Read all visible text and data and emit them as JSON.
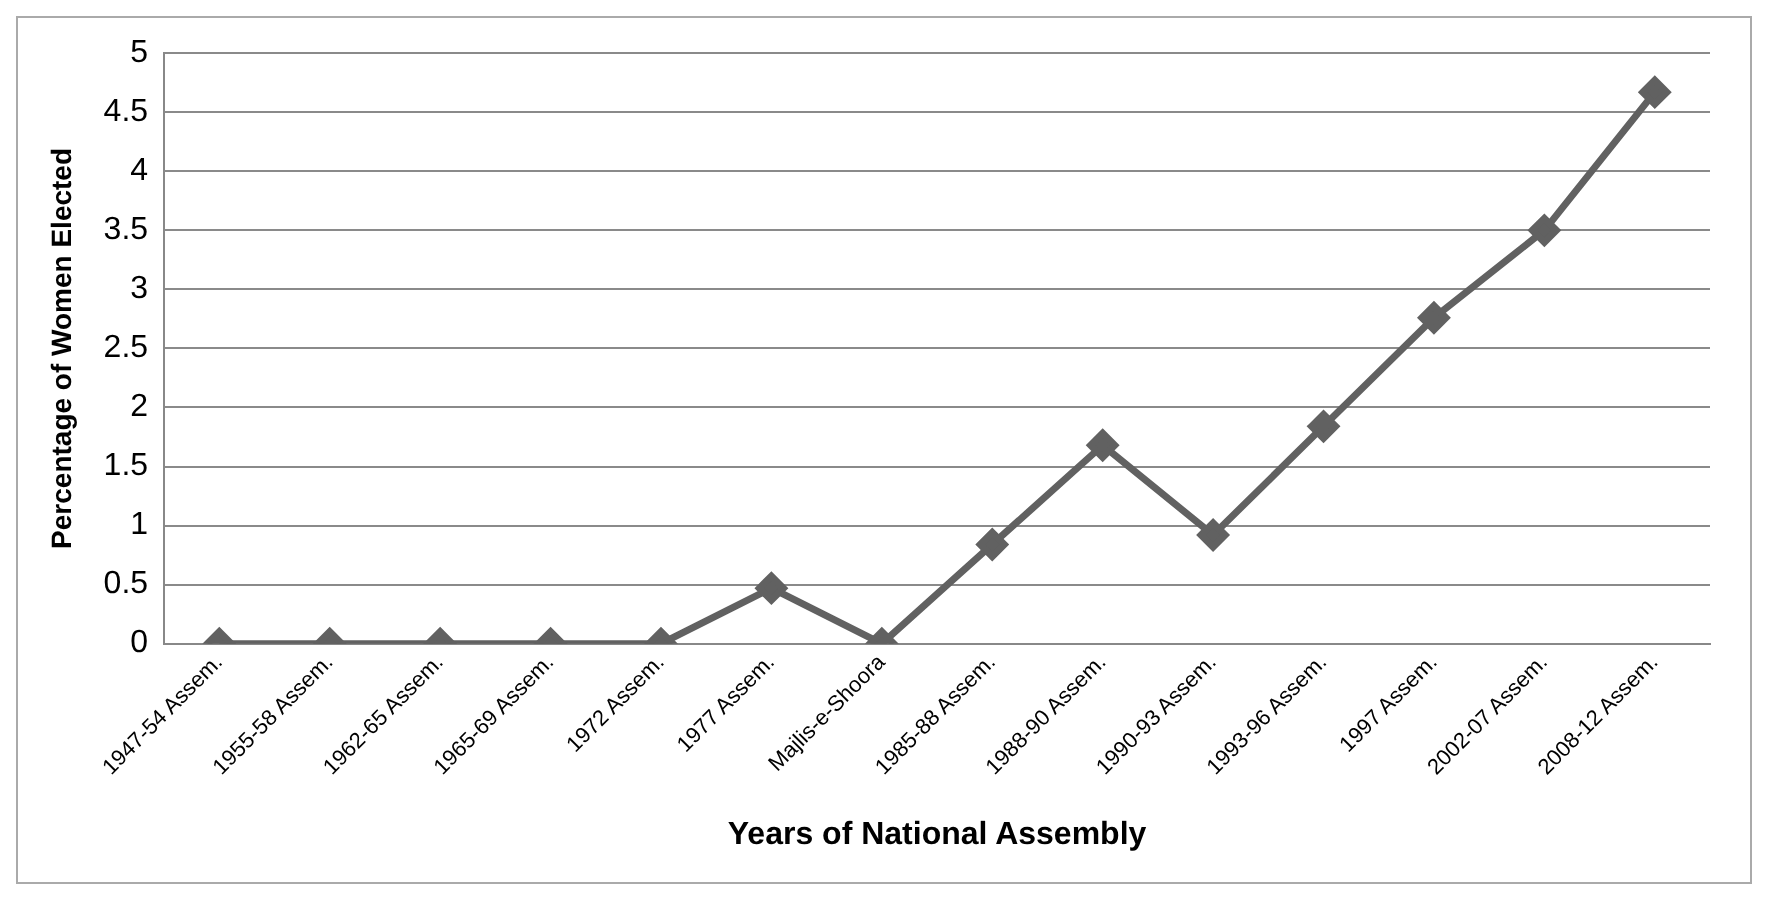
{
  "chart_data": {
    "type": "line",
    "xlabel": "Years of National Assembly",
    "ylabel": "Percentage of Women Elected",
    "categories": [
      "1947-54 Assem.",
      "1955-58 Assem.",
      "1962-65 Assem.",
      "1965-69 Assem.",
      "1972 Assem.",
      "1977 Assem.",
      "Majlis-e-Shoora",
      "1985-88 Assem.",
      "1988-90 Assem.",
      "1990-93 Assem.",
      "1993-96 Assem.",
      "1997 Assem.",
      "2002-07 Assem.",
      "2008-12 Assem."
    ],
    "series": [
      {
        "color": "#616161",
        "values": [
          0,
          0,
          0,
          0,
          0,
          0.47,
          0,
          0.84,
          1.68,
          0.92,
          1.84,
          2.76,
          3.5,
          4.67
        ]
      }
    ],
    "ylim": [
      0,
      5
    ],
    "yticks": [
      0,
      0.5,
      1,
      1.5,
      2,
      2.5,
      3,
      3.5,
      4,
      4.5,
      5
    ],
    "grid": "y",
    "legend": false,
    "marker": "diamond",
    "line_style": "solid"
  }
}
